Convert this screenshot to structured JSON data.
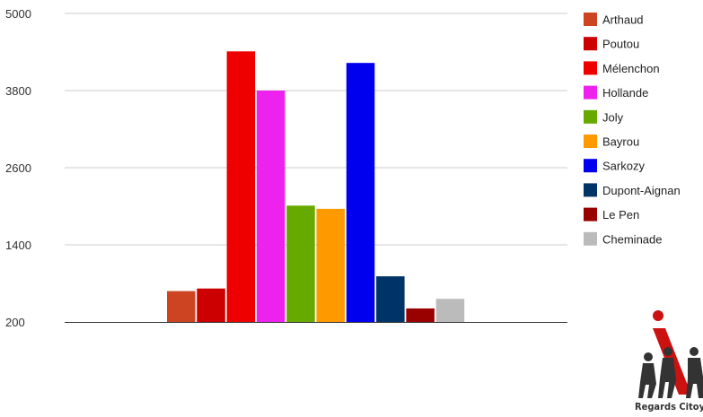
{
  "chart_data": {
    "type": "bar",
    "categories": [
      "Arthaud",
      "Poutou",
      "Mélenchon",
      "Hollande",
      "Joly",
      "Bayrou",
      "Sarkozy",
      "Dupont-Aignan",
      "Le Pen",
      "Cheminade"
    ],
    "values": [
      680,
      720,
      4410,
      3800,
      2010,
      1960,
      4230,
      910,
      410,
      560
    ],
    "colors": [
      "#cc4422",
      "#cc0000",
      "#ee0000",
      "#ee22ee",
      "#66aa00",
      "#ff9900",
      "#0000ee",
      "#003366",
      "#990000",
      "#bbbbbb"
    ],
    "title": "",
    "xlabel": "",
    "ylabel": "",
    "ylim": [
      200,
      5000
    ],
    "yticks": [
      "5000",
      "3800",
      "2600",
      "1400",
      "200"
    ],
    "ytick_values": [
      5000,
      3800,
      2600,
      1400,
      200
    ],
    "grid": true,
    "legend_position": "right"
  },
  "logo": {
    "text": "Regards Citoyens",
    "colors": {
      "figures": "#333333",
      "accent": "#cc1111"
    }
  }
}
